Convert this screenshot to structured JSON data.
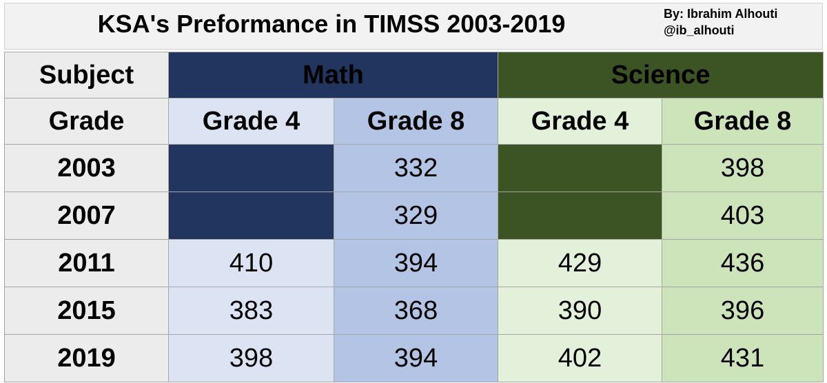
{
  "title": "KSA's Preformance in TIMSS 2003-2019",
  "credit": {
    "line1": "By: Ibrahim Alhouti",
    "line2": "@ib_alhouti"
  },
  "header": {
    "subject_label": "Subject",
    "math_label": "Math",
    "science_label": "Science",
    "grade_label": "Grade",
    "math_grade4": "Grade 4",
    "math_grade8": "Grade 8",
    "science_grade4": "Grade 4",
    "science_grade8": "Grade 8"
  },
  "colors": {
    "math_dark": "#21355f",
    "math_grade4": "#dce4f4",
    "math_grade8": "#b4c4e4",
    "science_dark": "#3c5423",
    "science_grade4": "#e3f0da",
    "science_grade8": "#cde4bb",
    "label_gray": "#ececec"
  },
  "rows": [
    {
      "year": "2003",
      "math_g4": "",
      "math_g8": "332",
      "sci_g4": "",
      "sci_g8": "398"
    },
    {
      "year": "2007",
      "math_g4": "",
      "math_g8": "329",
      "sci_g4": "",
      "sci_g8": "403"
    },
    {
      "year": "2011",
      "math_g4": "410",
      "math_g8": "394",
      "sci_g4": "429",
      "sci_g8": "436"
    },
    {
      "year": "2015",
      "math_g4": "383",
      "math_g8": "368",
      "sci_g4": "390",
      "sci_g8": "396"
    },
    {
      "year": "2019",
      "math_g4": "398",
      "math_g8": "394",
      "sci_g4": "402",
      "sci_g8": "431"
    }
  ]
}
